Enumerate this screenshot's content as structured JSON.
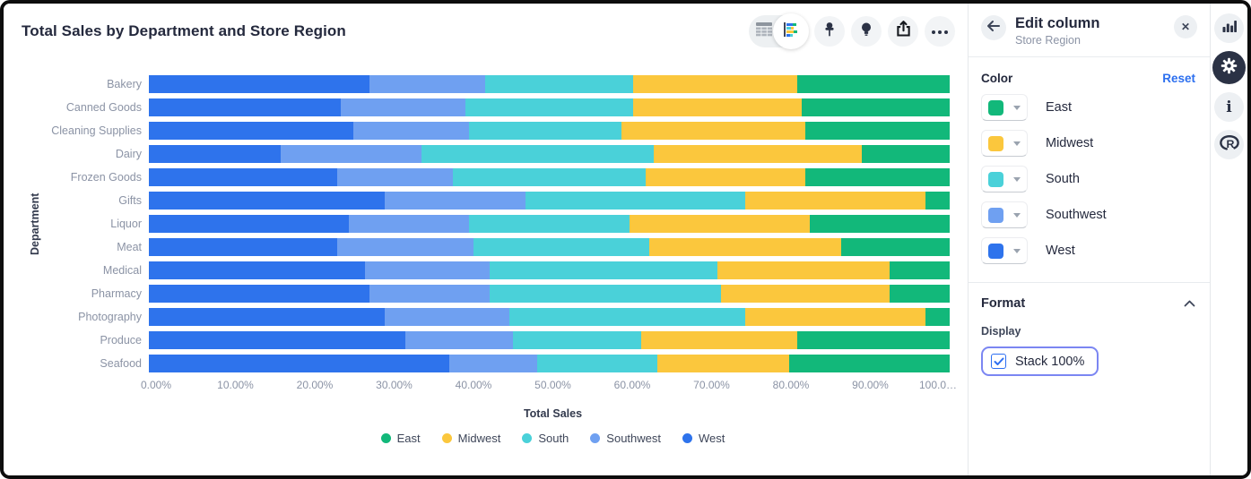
{
  "window": {
    "title": "Total Sales by Department and Store Region"
  },
  "toolbar": {
    "icons": [
      "table-icon",
      "stacked-bar-chart-icon",
      "pin-icon",
      "lightbulb-icon",
      "share-icon",
      "ellipsis-icon"
    ]
  },
  "chart_data": {
    "type": "bar",
    "orientation": "horizontal",
    "stacked": "100%",
    "xlabel": "Total Sales",
    "ylabel": "Department",
    "xlim": [
      0,
      100
    ],
    "x_ticks": [
      "0.00%",
      "10.00%",
      "20.00%",
      "30.00%",
      "40.00%",
      "50.00%",
      "60.00%",
      "70.00%",
      "80.00%",
      "90.00%",
      "100.0…"
    ],
    "grid": false,
    "categories": [
      "Bakery",
      "Canned Goods",
      "Cleaning Supplies",
      "Dairy",
      "Frozen Goods",
      "Gifts",
      "Liquor",
      "Meat",
      "Medical",
      "Pharmacy",
      "Photography",
      "Produce",
      "Seafood"
    ],
    "series": [
      {
        "name": "West",
        "color": "#2E73EC",
        "values": [
          27.5,
          24.0,
          25.5,
          16.5,
          23.5,
          29.5,
          25.0,
          23.5,
          27.0,
          27.5,
          29.5,
          32.0,
          37.5
        ]
      },
      {
        "name": "Southwest",
        "color": "#6FA0F1",
        "values": [
          14.5,
          15.5,
          14.5,
          17.5,
          14.5,
          17.5,
          15.0,
          17.0,
          15.5,
          15.0,
          15.5,
          13.5,
          11.0
        ]
      },
      {
        "name": "South",
        "color": "#4AD1D9",
        "values": [
          18.5,
          21.0,
          19.0,
          29.0,
          24.0,
          27.5,
          20.0,
          22.0,
          28.5,
          29.0,
          29.5,
          16.0,
          15.0
        ]
      },
      {
        "name": "Midwest",
        "color": "#FBC73D",
        "values": [
          20.5,
          21.0,
          23.0,
          26.0,
          20.0,
          22.5,
          22.5,
          24.0,
          21.5,
          21.0,
          22.5,
          19.5,
          16.5
        ]
      },
      {
        "name": "East",
        "color": "#12B87A",
        "values": [
          19.0,
          18.5,
          18.0,
          11.0,
          18.0,
          3.0,
          17.5,
          13.5,
          7.5,
          7.5,
          3.0,
          19.0,
          20.0
        ]
      }
    ],
    "legend": [
      {
        "label": "East",
        "color": "#12B87A"
      },
      {
        "label": "Midwest",
        "color": "#FBC73D"
      },
      {
        "label": "South",
        "color": "#4AD1D9"
      },
      {
        "label": "Southwest",
        "color": "#6FA0F1"
      },
      {
        "label": "West",
        "color": "#2E73EC"
      }
    ],
    "legend_position": "bottom"
  },
  "panel": {
    "title": "Edit column",
    "subtitle": "Store Region",
    "back_icon": "arrow-left-icon",
    "close_icon": "close-icon",
    "close_glyph": "✕",
    "color_section": {
      "label": "Color",
      "reset_label": "Reset",
      "items": [
        {
          "label": "East",
          "color": "#12B87A"
        },
        {
          "label": "Midwest",
          "color": "#FBC73D"
        },
        {
          "label": "South",
          "color": "#4AD1D9"
        },
        {
          "label": "Southwest",
          "color": "#6FA0F1"
        },
        {
          "label": "West",
          "color": "#2E73EC"
        }
      ]
    },
    "format_section": {
      "label": "Format",
      "collapse_icon": "chevron-up-icon",
      "display_label": "Display",
      "stack_checkbox": {
        "label": "Stack 100%",
        "checked": true
      }
    }
  },
  "rail": {
    "icons": [
      "bar-chart-icon",
      "gear-icon",
      "info-icon",
      "r-logo-icon"
    ],
    "info_glyph": "i"
  },
  "colors": {
    "accent_blue": "#2C6FEF",
    "focus_ring": "#7B86F2",
    "dark_text": "#24293D",
    "muted_text": "#8B93A5"
  }
}
